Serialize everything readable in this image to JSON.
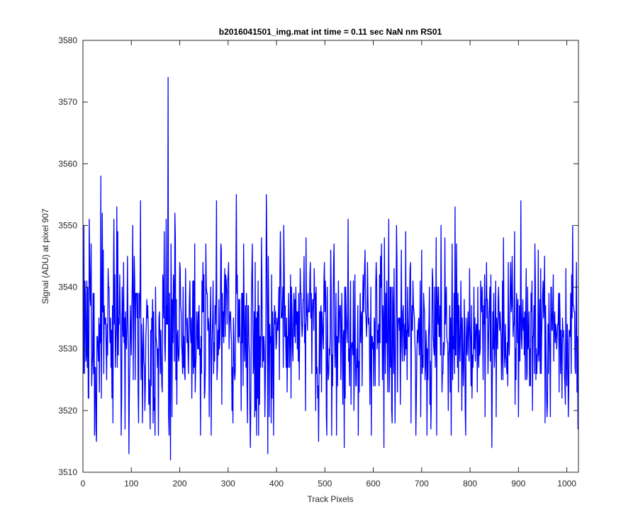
{
  "chart_data": {
    "type": "line",
    "title": "b2016041501_img.mat int time = 0.11 sec  NaN nm RS01",
    "xlabel": "Track Pixels",
    "ylabel": "Signal (ADU) at pixel 907",
    "xlim": [
      0,
      1024
    ],
    "ylim": [
      3510,
      3580
    ],
    "xticks": [
      0,
      100,
      200,
      300,
      400,
      500,
      600,
      700,
      800,
      900,
      1000
    ],
    "yticks": [
      3510,
      3520,
      3530,
      3540,
      3550,
      3560,
      3570,
      3580
    ],
    "grid": false,
    "legend": "none",
    "line_color": "#0000ff",
    "series": [
      {
        "x_start": 1,
        "x_step": 1,
        "points": 1024,
        "y_mean": 3533,
        "y_min": 3512,
        "y_max": 3574,
        "highlights": [
          {
            "x": 2,
            "y": 3550
          },
          {
            "x": 14,
            "y": 3545
          },
          {
            "x": 28,
            "y": 3515
          },
          {
            "x": 37,
            "y": 3558
          },
          {
            "x": 40,
            "y": 3552
          },
          {
            "x": 95,
            "y": 3513
          },
          {
            "x": 103,
            "y": 3550
          },
          {
            "x": 119,
            "y": 3554
          },
          {
            "x": 128,
            "y": 3520
          },
          {
            "x": 145,
            "y": 3518
          },
          {
            "x": 172,
            "y": 3551
          },
          {
            "x": 176,
            "y": 3574
          },
          {
            "x": 181,
            "y": 3512
          },
          {
            "x": 190,
            "y": 3552
          },
          {
            "x": 265,
            "y": 3516
          },
          {
            "x": 276,
            "y": 3554
          },
          {
            "x": 317,
            "y": 3555
          },
          {
            "x": 346,
            "y": 3514
          },
          {
            "x": 379,
            "y": 3555
          },
          {
            "x": 382,
            "y": 3513
          },
          {
            "x": 487,
            "y": 3515
          },
          {
            "x": 540,
            "y": 3514
          },
          {
            "x": 622,
            "y": 3514
          },
          {
            "x": 688,
            "y": 3516
          },
          {
            "x": 845,
            "y": 3514
          },
          {
            "x": 905,
            "y": 3554
          },
          {
            "x": 955,
            "y": 3518
          },
          {
            "x": 1012,
            "y": 3550
          }
        ]
      }
    ]
  }
}
